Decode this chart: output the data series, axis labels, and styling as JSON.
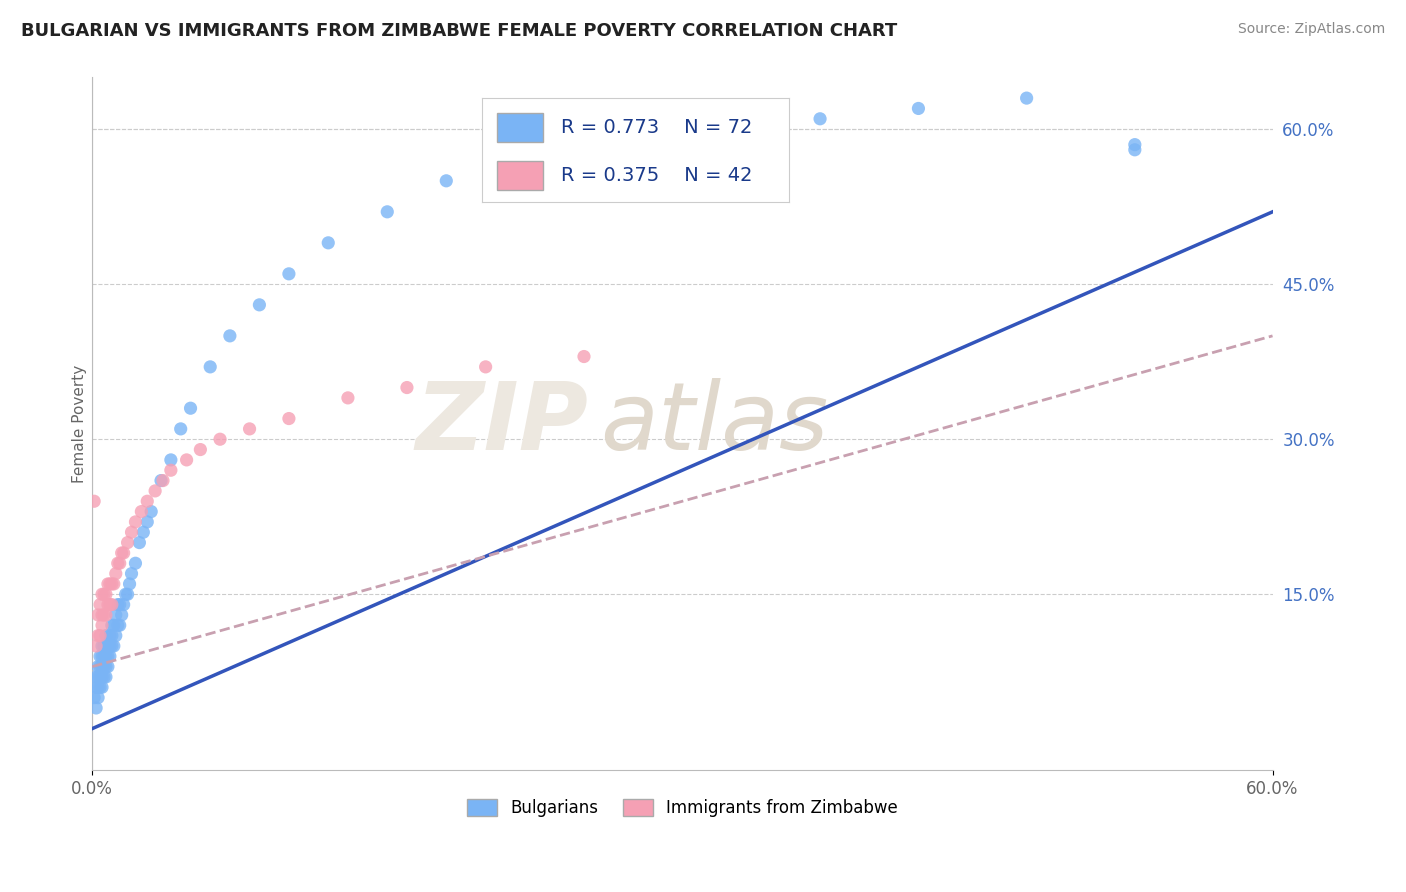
{
  "title": "BULGARIAN VS IMMIGRANTS FROM ZIMBABWE FEMALE POVERTY CORRELATION CHART",
  "source": "Source: ZipAtlas.com",
  "ylabel": "Female Poverty",
  "xlim": [
    0.0,
    0.6
  ],
  "ylim": [
    -0.02,
    0.65
  ],
  "xtick_positions": [
    0.0,
    0.6
  ],
  "xtick_labels": [
    "0.0%",
    "60.0%"
  ],
  "ytick_vals_right": [
    0.15,
    0.3,
    0.45,
    0.6
  ],
  "ytick_labels_right": [
    "15.0%",
    "30.0%",
    "45.0%",
    "60.0%"
  ],
  "blue_color": "#7ab4f5",
  "pink_color": "#f5a0b4",
  "blue_line_color": "#3355bb",
  "pink_line_color": "#c8a0b0",
  "R_blue": 0.773,
  "N_blue": 72,
  "R_pink": 0.375,
  "N_pink": 42,
  "watermark_zip": "ZIP",
  "watermark_atlas": "atlas",
  "legend_label_blue": "Bulgarians",
  "legend_label_pink": "Immigrants from Zimbabwe",
  "blue_line_x0": 0.0,
  "blue_line_y0": 0.02,
  "blue_line_x1": 0.6,
  "blue_line_y1": 0.52,
  "pink_line_x0": 0.0,
  "pink_line_y0": 0.08,
  "pink_line_x1": 0.6,
  "pink_line_y1": 0.4,
  "blue_scatter_x": [
    0.001,
    0.002,
    0.002,
    0.002,
    0.003,
    0.003,
    0.003,
    0.003,
    0.004,
    0.004,
    0.004,
    0.004,
    0.005,
    0.005,
    0.005,
    0.005,
    0.005,
    0.006,
    0.006,
    0.006,
    0.006,
    0.007,
    0.007,
    0.007,
    0.007,
    0.008,
    0.008,
    0.008,
    0.009,
    0.009,
    0.009,
    0.01,
    0.01,
    0.01,
    0.011,
    0.011,
    0.012,
    0.012,
    0.013,
    0.013,
    0.014,
    0.014,
    0.015,
    0.016,
    0.017,
    0.018,
    0.019,
    0.02,
    0.022,
    0.024,
    0.026,
    0.028,
    0.03,
    0.035,
    0.04,
    0.045,
    0.05,
    0.06,
    0.07,
    0.085,
    0.1,
    0.12,
    0.15,
    0.18,
    0.22,
    0.27,
    0.32,
    0.37,
    0.42,
    0.475,
    0.53,
    0.53
  ],
  "blue_scatter_y": [
    0.05,
    0.04,
    0.06,
    0.07,
    0.05,
    0.06,
    0.07,
    0.08,
    0.06,
    0.07,
    0.08,
    0.09,
    0.06,
    0.07,
    0.08,
    0.09,
    0.1,
    0.07,
    0.08,
    0.09,
    0.1,
    0.07,
    0.08,
    0.09,
    0.11,
    0.08,
    0.09,
    0.1,
    0.09,
    0.1,
    0.11,
    0.1,
    0.11,
    0.12,
    0.1,
    0.12,
    0.11,
    0.13,
    0.12,
    0.14,
    0.12,
    0.14,
    0.13,
    0.14,
    0.15,
    0.15,
    0.16,
    0.17,
    0.18,
    0.2,
    0.21,
    0.22,
    0.23,
    0.26,
    0.28,
    0.31,
    0.33,
    0.37,
    0.4,
    0.43,
    0.46,
    0.49,
    0.52,
    0.55,
    0.57,
    0.59,
    0.6,
    0.61,
    0.62,
    0.63,
    0.58,
    0.585
  ],
  "pink_scatter_x": [
    0.001,
    0.002,
    0.003,
    0.003,
    0.004,
    0.004,
    0.005,
    0.005,
    0.005,
    0.006,
    0.006,
    0.007,
    0.007,
    0.008,
    0.008,
    0.009,
    0.009,
    0.01,
    0.01,
    0.011,
    0.012,
    0.013,
    0.014,
    0.015,
    0.016,
    0.018,
    0.02,
    0.022,
    0.025,
    0.028,
    0.032,
    0.036,
    0.04,
    0.048,
    0.055,
    0.065,
    0.08,
    0.1,
    0.13,
    0.16,
    0.2,
    0.25
  ],
  "pink_scatter_y": [
    0.24,
    0.1,
    0.11,
    0.13,
    0.11,
    0.14,
    0.12,
    0.13,
    0.15,
    0.13,
    0.15,
    0.13,
    0.15,
    0.14,
    0.16,
    0.14,
    0.16,
    0.14,
    0.16,
    0.16,
    0.17,
    0.18,
    0.18,
    0.19,
    0.19,
    0.2,
    0.21,
    0.22,
    0.23,
    0.24,
    0.25,
    0.26,
    0.27,
    0.28,
    0.29,
    0.3,
    0.31,
    0.32,
    0.34,
    0.35,
    0.37,
    0.38
  ]
}
